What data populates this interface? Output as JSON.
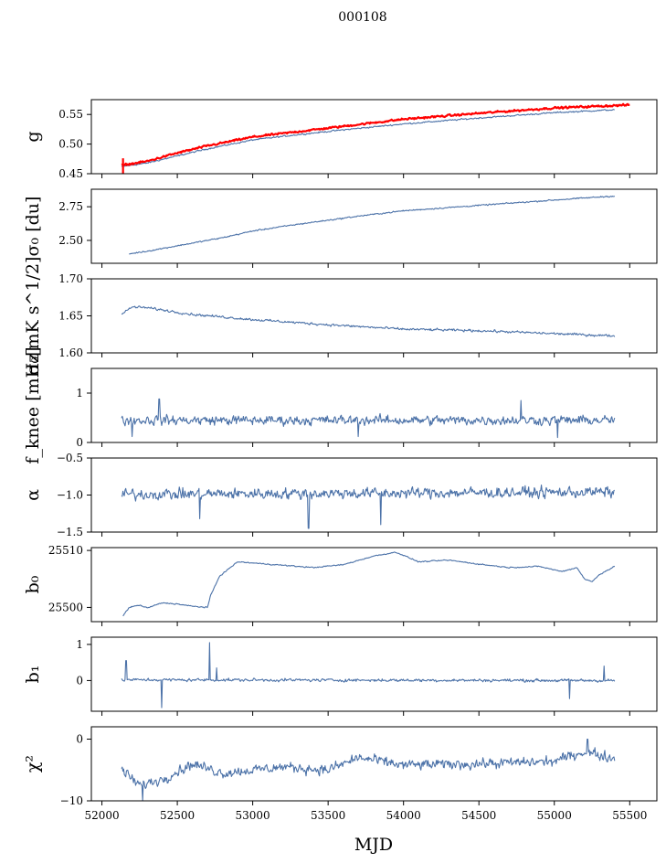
{
  "chart_data": {
    "type": "line",
    "title": "000108",
    "xlabel": "MJD",
    "xlim": [
      51930,
      55680
    ],
    "xticks": [
      52000,
      52500,
      53000,
      53500,
      54000,
      54500,
      55000,
      55500
    ],
    "x_start": 52120,
    "x_end": 55400,
    "colors": {
      "series": "#4c72a8",
      "overlay": "#ff0000"
    },
    "panels": [
      {
        "id": "g",
        "ylabel": "g",
        "ylim": [
          0.45,
          0.575
        ],
        "yticks": [
          0.45,
          0.5,
          0.55
        ],
        "ytick_labels": [
          "0.45",
          "0.50",
          "0.55"
        ],
        "series": [
          {
            "name": "g (blue)",
            "points": [
              [
                52130,
                0.462
              ],
              [
                52300,
                0.468
              ],
              [
                52500,
                0.48
              ],
              [
                52700,
                0.492
              ],
              [
                53000,
                0.507
              ],
              [
                53300,
                0.516
              ],
              [
                53600,
                0.524
              ],
              [
                54000,
                0.534
              ],
              [
                54500,
                0.544
              ],
              [
                55000,
                0.553
              ],
              [
                55400,
                0.558
              ]
            ],
            "noise": 0.0015
          },
          {
            "name": "g (red)",
            "points": [
              [
                52130,
                0.464
              ],
              [
                52300,
                0.471
              ],
              [
                52500,
                0.485
              ],
              [
                52700,
                0.497
              ],
              [
                53000,
                0.512
              ],
              [
                53300,
                0.521
              ],
              [
                53600,
                0.53
              ],
              [
                54000,
                0.542
              ],
              [
                54500,
                0.552
              ],
              [
                55000,
                0.561
              ],
              [
                55500,
                0.566
              ]
            ],
            "noise": 0.002,
            "spike": {
              "x": 52140,
              "low": 0.448,
              "high": 0.476
            }
          }
        ]
      },
      {
        "id": "sigma0",
        "ylabel": "σ₀ [du]",
        "ylim": [
          2.33,
          2.88
        ],
        "yticks": [
          2.5,
          2.75
        ],
        "ytick_labels": [
          "2.50",
          "2.75"
        ],
        "series": [
          {
            "name": "sigma0",
            "points": [
              [
                52180,
                2.4
              ],
              [
                52300,
                2.42
              ],
              [
                52500,
                2.46
              ],
              [
                52800,
                2.52
              ],
              [
                53000,
                2.57
              ],
              [
                53300,
                2.62
              ],
              [
                53700,
                2.68
              ],
              [
                54000,
                2.72
              ],
              [
                54500,
                2.76
              ],
              [
                55000,
                2.8
              ],
              [
                55400,
                2.83
              ]
            ],
            "noise": 0.006
          }
        ]
      },
      {
        "id": "sigma0_phys",
        "ylabel": "σ₀[mK s^1/2]",
        "ylim": [
          1.6,
          1.7
        ],
        "yticks": [
          1.6,
          1.65,
          1.7
        ],
        "ytick_labels": [
          "1.60",
          "1.65",
          "1.70"
        ],
        "series": [
          {
            "name": "sigma0 physical",
            "points": [
              [
                52130,
                1.652
              ],
              [
                52200,
                1.662
              ],
              [
                52300,
                1.661
              ],
              [
                52600,
                1.652
              ],
              [
                53000,
                1.645
              ],
              [
                53500,
                1.638
              ],
              [
                54000,
                1.632
              ],
              [
                54500,
                1.63
              ],
              [
                55000,
                1.626
              ],
              [
                55400,
                1.623
              ]
            ],
            "noise": 0.002
          }
        ]
      },
      {
        "id": "fknee",
        "ylabel": "f_knee [mHz]",
        "ylim": [
          0,
          1.5
        ],
        "yticks": [
          0,
          1
        ],
        "ytick_labels": [
          "0",
          "1"
        ],
        "series": [
          {
            "name": "fknee",
            "points": [
              [
                52130,
                0.45
              ],
              [
                55400,
                0.45
              ]
            ],
            "noise": 0.12,
            "spikes": [
              [
                52380,
                0.88
              ],
              [
                54780,
                0.85
              ],
              [
                52200,
                0.12
              ],
              [
                53700,
                0.12
              ],
              [
                55020,
                0.1
              ]
            ]
          }
        ]
      },
      {
        "id": "alpha",
        "ylabel": "α",
        "ylim": [
          -1.5,
          -0.5
        ],
        "yticks": [
          -1.5,
          -1.0,
          -0.5
        ],
        "ytick_labels": [
          "−1.5",
          "−1.0",
          "−0.5"
        ],
        "series": [
          {
            "name": "alpha",
            "points": [
              [
                52130,
                -0.99
              ],
              [
                55400,
                -0.96
              ]
            ],
            "noise": 0.09,
            "spikes": [
              [
                53370,
                -1.45
              ],
              [
                53850,
                -1.4
              ],
              [
                52650,
                -1.32
              ],
              [
                53370,
                -1.45
              ]
            ]
          }
        ]
      },
      {
        "id": "b0",
        "ylabel": "b₀",
        "ylim": [
          25497.5,
          25510.5
        ],
        "yticks": [
          25500,
          25510
        ],
        "ytick_labels": [
          "25500",
          "25510"
        ],
        "series": [
          {
            "name": "b0",
            "points": [
              [
                52140,
                25498.5
              ],
              [
                52180,
                25500.0
              ],
              [
                52250,
                25500.4
              ],
              [
                52300,
                25499.9
              ],
              [
                52400,
                25500.8
              ],
              [
                52500,
                25500.6
              ],
              [
                52600,
                25500.2
              ],
              [
                52700,
                25500.0
              ],
              [
                52720,
                25502.0
              ],
              [
                52780,
                25505.5
              ],
              [
                52900,
                25508.0
              ],
              [
                53000,
                25507.8
              ],
              [
                53200,
                25507.4
              ],
              [
                53400,
                25507.0
              ],
              [
                53600,
                25507.5
              ],
              [
                53800,
                25509.0
              ],
              [
                53950,
                25509.7
              ],
              [
                54100,
                25508.0
              ],
              [
                54300,
                25508.3
              ],
              [
                54500,
                25507.6
              ],
              [
                54700,
                25507.0
              ],
              [
                54900,
                25507.2
              ],
              [
                55050,
                25506.3
              ],
              [
                55150,
                25507.0
              ],
              [
                55200,
                25505.0
              ],
              [
                55250,
                25504.5
              ],
              [
                55300,
                25505.8
              ],
              [
                55400,
                25507.2
              ]
            ],
            "noise": 0.12
          }
        ]
      },
      {
        "id": "b1",
        "ylabel": "b₁",
        "ylim": [
          -0.85,
          1.2
        ],
        "yticks": [
          0,
          1
        ],
        "ytick_labels": [
          "0",
          "1"
        ],
        "series": [
          {
            "name": "b1",
            "points": [
              [
                52130,
                0.02
              ],
              [
                55400,
                0.0
              ]
            ],
            "noise": 0.05,
            "spikes": [
              [
                52160,
                0.55
              ],
              [
                52395,
                -0.75
              ],
              [
                52715,
                1.05
              ],
              [
                52760,
                0.35
              ],
              [
                55100,
                -0.5
              ],
              [
                55330,
                0.4
              ]
            ]
          }
        ]
      },
      {
        "id": "chi2",
        "ylabel": "χ²",
        "ylim": [
          -10,
          2
        ],
        "yticks": [
          -10,
          0
        ],
        "ytick_labels": [
          "−10",
          "0"
        ],
        "series": [
          {
            "name": "chi2",
            "points": [
              [
                52130,
                -5.0
              ],
              [
                52250,
                -7.5
              ],
              [
                52400,
                -6.5
              ],
              [
                52600,
                -4.0
              ],
              [
                52800,
                -5.5
              ],
              [
                53000,
                -5.0
              ],
              [
                53200,
                -4.5
              ],
              [
                53500,
                -5.0
              ],
              [
                53700,
                -3.0
              ],
              [
                54000,
                -4.2
              ],
              [
                54500,
                -4.0
              ],
              [
                55000,
                -3.6
              ],
              [
                55200,
                -2.0
              ],
              [
                55400,
                -3.2
              ]
            ],
            "noise": 1.0,
            "spikes": [
              [
                52270,
                -10.0
              ],
              [
                55220,
                0.0
              ]
            ]
          }
        ]
      }
    ]
  }
}
